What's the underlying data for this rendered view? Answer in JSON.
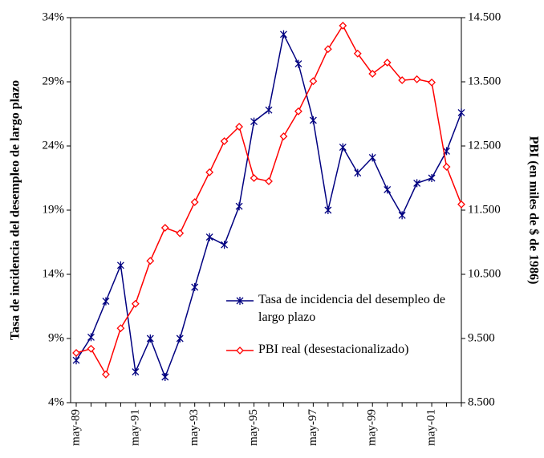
{
  "chart_data": {
    "type": "line",
    "y_label": "Tasa de incidencia del desempleo de largo plazo",
    "y2_label": "PBI (en miles de $ de 1986)",
    "categories": [
      "may-89",
      null,
      null,
      null,
      "may-91",
      null,
      null,
      null,
      "may-93",
      null,
      null,
      null,
      "may-95",
      null,
      null,
      null,
      "may-97",
      null,
      null,
      null,
      "may-99",
      null,
      null,
      null,
      "may-01",
      null,
      null
    ],
    "series": [
      {
        "name": "Tasa de incidencia del desempleo de largo plazo",
        "color": "#000080",
        "marker": "asterisk",
        "values": [
          7.3,
          9.1,
          11.9,
          14.7,
          6.4,
          9.0,
          6.0,
          9.0,
          13.0,
          16.9,
          16.3,
          19.3,
          25.9,
          26.8,
          32.7,
          30.4,
          26.0,
          19.0,
          23.9,
          21.9,
          23.1,
          20.6,
          18.6,
          21.1,
          21.5,
          23.6,
          26.6
        ]
      },
      {
        "name": "PBI real (desestacionalizado)",
        "color": "#ff0000",
        "marker": "diamond",
        "axis": "y2",
        "values": [
          9275,
          9340,
          8940,
          9660,
          10040,
          10710,
          11225,
          11140,
          11625,
          12090,
          12575,
          12800,
          12000,
          11950,
          12650,
          13040,
          13510,
          14010,
          14375,
          13940,
          13625,
          13800,
          13525,
          13540,
          13490,
          12175,
          11590
        ]
      }
    ],
    "ylim": [
      4,
      34
    ],
    "yticks": [
      {
        "value": 4,
        "label": "4%"
      },
      {
        "value": 9,
        "label": "9%"
      },
      {
        "value": 14,
        "label": "14%"
      },
      {
        "value": 19,
        "label": "19%"
      },
      {
        "value": 24,
        "label": "24%"
      },
      {
        "value": 29,
        "label": "29%"
      },
      {
        "value": 34,
        "label": "34%"
      }
    ],
    "y2lim": [
      8500,
      14500
    ],
    "y2ticks": [
      {
        "value": 8500,
        "label": "8.500"
      },
      {
        "value": 9500,
        "label": "9.500"
      },
      {
        "value": 10500,
        "label": "10.500"
      },
      {
        "value": 11500,
        "label": "11.500"
      },
      {
        "value": 12500,
        "label": "12.500"
      },
      {
        "value": 13500,
        "label": "13.500"
      },
      {
        "value": 14500,
        "label": "14.500"
      }
    ],
    "grid": false
  }
}
